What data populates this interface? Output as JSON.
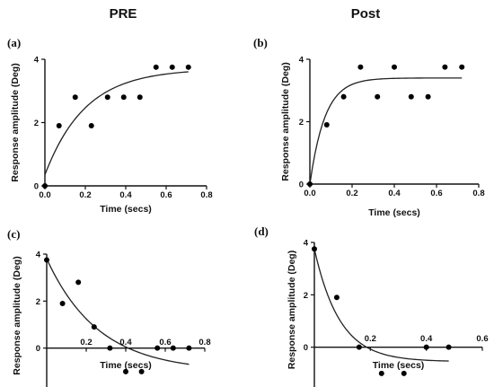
{
  "column_titles": [
    "PRE",
    "Post"
  ],
  "chart_data": [
    {
      "type": "scatter",
      "panel": "(a)",
      "xlabel": "Time (secs)",
      "ylabel": "Response amplitude (Deg)",
      "xlim": [
        0,
        0.8
      ],
      "ylim": [
        0,
        4
      ],
      "xticks": [
        0.0,
        0.2,
        0.4,
        0.6,
        0.8
      ],
      "yticks": [
        0,
        2,
        4
      ],
      "xtick_labels": [
        "0.0",
        "0.2",
        "0.4",
        "0.6",
        "0.8"
      ],
      "ytick_labels": [
        "0",
        "2",
        "4"
      ],
      "points": {
        "x": [
          0.0,
          0.07,
          0.15,
          0.23,
          0.31,
          0.39,
          0.47,
          0.55,
          0.63,
          0.71
        ],
        "y": [
          0.0,
          1.9,
          2.8,
          1.9,
          2.8,
          2.8,
          2.8,
          3.75,
          3.75,
          3.75
        ]
      },
      "fit": {
        "model": "exponential rise",
        "plateau": 3.7,
        "y0": 0.35,
        "k": 5.0
      }
    },
    {
      "type": "scatter",
      "panel": "(b)",
      "xlabel": "Time (secs)",
      "ylabel": "Response amplitude (Deg)",
      "xlim": [
        0,
        0.8
      ],
      "ylim": [
        0,
        4
      ],
      "xticks": [
        0.0,
        0.2,
        0.4,
        0.6,
        0.8
      ],
      "yticks": [
        0,
        2,
        4
      ],
      "xtick_labels": [
        "0.0",
        "0.2",
        "0.4",
        "0.6",
        "0.8"
      ],
      "ytick_labels": [
        "0",
        "2",
        "4"
      ],
      "points": {
        "x": [
          0.0,
          0.08,
          0.16,
          0.24,
          0.32,
          0.4,
          0.48,
          0.56,
          0.64,
          0.72
        ],
        "y": [
          0.0,
          1.9,
          2.8,
          3.75,
          2.8,
          3.75,
          2.8,
          2.8,
          3.75,
          3.75
        ]
      },
      "fit": {
        "model": "exponential rise",
        "plateau": 3.4,
        "y0": 0.0,
        "k": 14.0
      }
    },
    {
      "type": "scatter",
      "panel": "(c)",
      "xlabel": "Time (secs)",
      "ylabel": "Response amplitude (Deg)",
      "xlim": [
        0,
        0.8
      ],
      "ylim": [
        -2,
        4
      ],
      "xticks": [
        0.2,
        0.4,
        0.6,
        0.8
      ],
      "yticks": [
        -2,
        0,
        2,
        4
      ],
      "xtick_labels": [
        "0.2",
        "0.4",
        "0.6",
        "0.8"
      ],
      "ytick_labels": [
        "-2",
        "0",
        "2",
        "4"
      ],
      "points": {
        "x": [
          0.0,
          0.08,
          0.16,
          0.24,
          0.32,
          0.4,
          0.48,
          0.56,
          0.64,
          0.72
        ],
        "y": [
          3.75,
          1.9,
          2.8,
          0.9,
          0.0,
          -1.0,
          -1.0,
          0.0,
          0.0,
          0.0
        ]
      },
      "fit": {
        "model": "exponential decay",
        "plateau": -1.0,
        "y0": 3.8,
        "k": 3.8
      }
    },
    {
      "type": "scatter",
      "panel": "(d)",
      "xlabel": "Time (secs)",
      "ylabel": "Response amplitude (Deg)",
      "xlim": [
        0,
        0.6
      ],
      "ylim": [
        -2,
        4
      ],
      "xticks": [
        0.2,
        0.4,
        0.6
      ],
      "yticks": [
        -2,
        0,
        2,
        4
      ],
      "xtick_labels": [
        "0.2",
        "0.4",
        "0.6"
      ],
      "ytick_labels": [
        "-2",
        "0",
        "2",
        "4"
      ],
      "points": {
        "x": [
          0.0,
          0.08,
          0.16,
          0.24,
          0.32,
          0.4,
          0.48
        ],
        "y": [
          3.75,
          1.9,
          0.0,
          -1.0,
          -1.0,
          0.0,
          0.0
        ]
      },
      "fit": {
        "model": "exponential decay",
        "plateau": -0.55,
        "y0": 3.75,
        "k": 11.0
      }
    }
  ]
}
